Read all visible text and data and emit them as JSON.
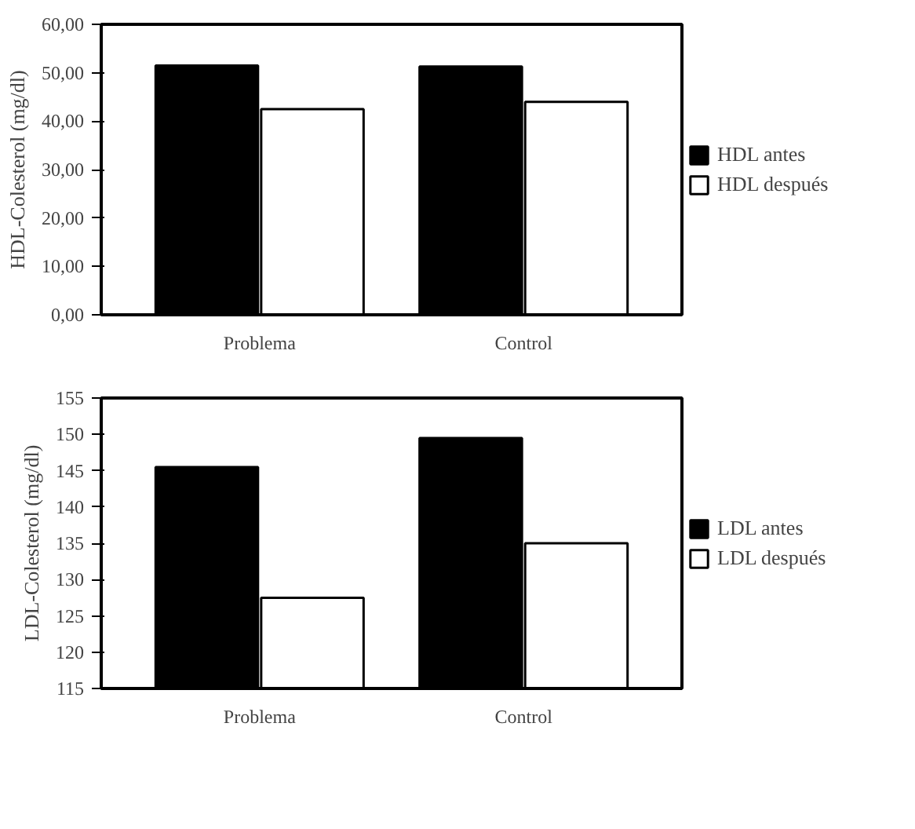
{
  "chart_data": [
    {
      "type": "bar",
      "ylabel": "HDL-Colesterol (mg/dl)",
      "categories": [
        "Problema",
        "Control"
      ],
      "series": [
        {
          "name": "HDL antes",
          "color": "#000000",
          "values": [
            51.5,
            51.3
          ]
        },
        {
          "name": "HDL después",
          "color": "#ffffff",
          "values": [
            42.5,
            44
          ]
        }
      ],
      "ylim": [
        0,
        60
      ],
      "yticks": [
        {
          "value": 0,
          "label": "0,00"
        },
        {
          "value": 10,
          "label": "10,00"
        },
        {
          "value": 20,
          "label": "20,00"
        },
        {
          "value": 30,
          "label": "30,00"
        },
        {
          "value": 40,
          "label": "40,00"
        },
        {
          "value": 50,
          "label": "50,00"
        },
        {
          "value": 60,
          "label": "60,00"
        }
      ],
      "legend": "right"
    },
    {
      "type": "bar",
      "ylabel": "LDL-Colesterol (mg/dl)",
      "categories": [
        "Problema",
        "Control"
      ],
      "series": [
        {
          "name": "LDL antes",
          "color": "#000000",
          "values": [
            145.5,
            149.5
          ]
        },
        {
          "name": "LDL después",
          "color": "#ffffff",
          "values": [
            127.5,
            135
          ]
        }
      ],
      "ylim": [
        115,
        155
      ],
      "yticks": [
        115,
        120,
        125,
        130,
        135,
        140,
        145,
        150,
        155
      ],
      "legend": "right"
    }
  ]
}
